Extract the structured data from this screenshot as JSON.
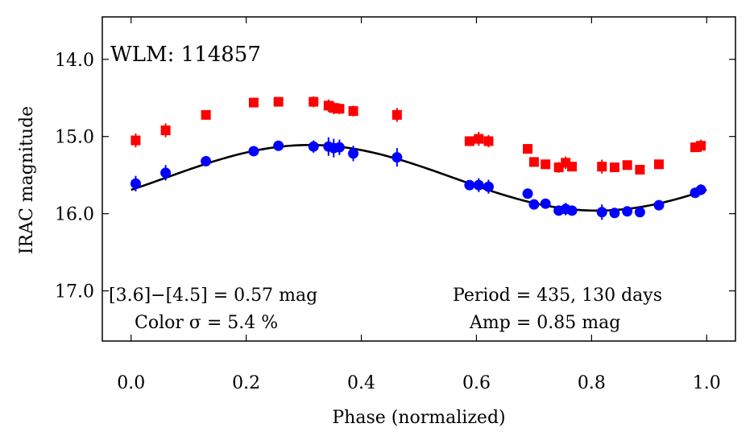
{
  "chart_data": {
    "type": "scatter",
    "xlabel": "Phase (normalized)",
    "ylabel": "IRAC magnitude",
    "xlim": [
      -0.05,
      1.05
    ],
    "ylim": [
      17.65,
      13.45
    ],
    "y_inverted": true,
    "x_ticks": [
      "0.0",
      "0.2",
      "0.4",
      "0.6",
      "0.8",
      "1.0"
    ],
    "x_tick_values": [
      0.0,
      0.2,
      0.4,
      0.6,
      0.8,
      1.0
    ],
    "y_ticks": [
      "14.0",
      "15.0",
      "16.0",
      "17.0"
    ],
    "y_tick_values": [
      14.0,
      15.0,
      16.0,
      17.0
    ],
    "grid": false,
    "annotations": {
      "star": "WLM: 114857",
      "color_diff": "[3.6]−[4.5] = 0.57 mag",
      "color_sigma": "Color σ = 5.4 %",
      "period": "Period = 435, 130 days",
      "amp": "Amp = 0.85 mag"
    },
    "colors": {
      "red_series": "#ff0000",
      "blue_series": "#0000ff",
      "fit": "#000000"
    },
    "series": [
      {
        "marker": "square",
        "color": "#ff0000",
        "points": [
          {
            "x": 0.008,
            "y": 15.05,
            "err": 0.09
          },
          {
            "x": 0.06,
            "y": 14.92,
            "err": 0.09
          },
          {
            "x": 0.13,
            "y": 14.72,
            "err": 0.05
          },
          {
            "x": 0.213,
            "y": 14.56,
            "err": 0.05
          },
          {
            "x": 0.256,
            "y": 14.55,
            "err": 0.05
          },
          {
            "x": 0.317,
            "y": 14.55,
            "err": 0.07
          },
          {
            "x": 0.343,
            "y": 14.6,
            "err": 0.08
          },
          {
            "x": 0.352,
            "y": 14.63,
            "err": 0.08
          },
          {
            "x": 0.362,
            "y": 14.64,
            "err": 0.07
          },
          {
            "x": 0.386,
            "y": 14.67,
            "err": 0.07
          },
          {
            "x": 0.462,
            "y": 14.72,
            "err": 0.09
          },
          {
            "x": 0.588,
            "y": 15.06,
            "err": 0.06
          },
          {
            "x": 0.604,
            "y": 15.03,
            "err": 0.09
          },
          {
            "x": 0.621,
            "y": 15.06,
            "err": 0.08
          },
          {
            "x": 0.689,
            "y": 15.16,
            "err": 0.06
          },
          {
            "x": 0.7,
            "y": 15.33,
            "err": 0.06
          },
          {
            "x": 0.72,
            "y": 15.36,
            "err": 0.06
          },
          {
            "x": 0.743,
            "y": 15.4,
            "err": 0.07
          },
          {
            "x": 0.755,
            "y": 15.34,
            "err": 0.08
          },
          {
            "x": 0.766,
            "y": 15.39,
            "err": 0.06
          },
          {
            "x": 0.818,
            "y": 15.39,
            "err": 0.09
          },
          {
            "x": 0.84,
            "y": 15.4,
            "err": 0.06
          },
          {
            "x": 0.862,
            "y": 15.37,
            "err": 0.06
          },
          {
            "x": 0.884,
            "y": 15.43,
            "err": 0.06
          },
          {
            "x": 0.917,
            "y": 15.36,
            "err": 0.06
          },
          {
            "x": 0.98,
            "y": 15.14,
            "err": 0.06
          },
          {
            "x": 0.99,
            "y": 15.12,
            "err": 0.08
          }
        ]
      },
      {
        "marker": "circle",
        "color": "#0000ff",
        "points": [
          {
            "x": 0.008,
            "y": 15.61,
            "err": 0.1
          },
          {
            "x": 0.06,
            "y": 15.47,
            "err": 0.1
          },
          {
            "x": 0.13,
            "y": 15.32,
            "err": 0.05
          },
          {
            "x": 0.213,
            "y": 15.19,
            "err": 0.05
          },
          {
            "x": 0.256,
            "y": 15.12,
            "err": 0.05
          },
          {
            "x": 0.317,
            "y": 15.13,
            "err": 0.08
          },
          {
            "x": 0.343,
            "y": 15.13,
            "err": 0.12
          },
          {
            "x": 0.352,
            "y": 15.15,
            "err": 0.12
          },
          {
            "x": 0.362,
            "y": 15.14,
            "err": 0.1
          },
          {
            "x": 0.386,
            "y": 15.22,
            "err": 0.1
          },
          {
            "x": 0.462,
            "y": 15.27,
            "err": 0.12
          },
          {
            "x": 0.588,
            "y": 15.63,
            "err": 0.05
          },
          {
            "x": 0.604,
            "y": 15.63,
            "err": 0.09
          },
          {
            "x": 0.621,
            "y": 15.65,
            "err": 0.09
          },
          {
            "x": 0.689,
            "y": 15.74,
            "err": 0.05
          },
          {
            "x": 0.7,
            "y": 15.88,
            "err": 0.05
          },
          {
            "x": 0.72,
            "y": 15.87,
            "err": 0.05
          },
          {
            "x": 0.743,
            "y": 15.96,
            "err": 0.06
          },
          {
            "x": 0.755,
            "y": 15.94,
            "err": 0.08
          },
          {
            "x": 0.766,
            "y": 15.96,
            "err": 0.05
          },
          {
            "x": 0.818,
            "y": 15.98,
            "err": 0.1
          },
          {
            "x": 0.84,
            "y": 15.99,
            "err": 0.06
          },
          {
            "x": 0.862,
            "y": 15.97,
            "err": 0.05
          },
          {
            "x": 0.884,
            "y": 15.98,
            "err": 0.05
          },
          {
            "x": 0.917,
            "y": 15.89,
            "err": 0.05
          },
          {
            "x": 0.98,
            "y": 15.73,
            "err": 0.05
          },
          {
            "x": 0.99,
            "y": 15.69,
            "err": 0.07
          }
        ]
      }
    ],
    "fit": {
      "type": "sinusoid",
      "mean": 15.535,
      "amplitude": 0.425,
      "phase_of_peak": 0.31,
      "x_range": [
        0.0,
        1.0
      ]
    }
  }
}
